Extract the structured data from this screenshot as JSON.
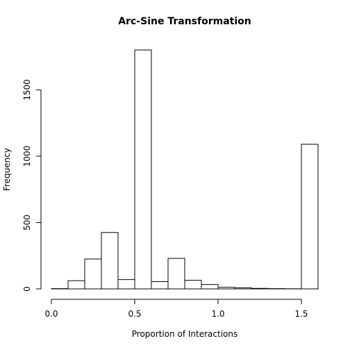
{
  "chart_data": {
    "type": "bar",
    "title": "Arc-Sine Transformation",
    "xlabel": "Proportion of Interactions",
    "ylabel": "Frequency",
    "bin_edges": [
      0.0,
      0.1,
      0.2,
      0.3,
      0.4,
      0.5,
      0.6,
      0.7,
      0.8,
      0.9,
      1.0,
      1.1,
      1.2,
      1.3,
      1.4,
      1.5,
      1.6
    ],
    "values": [
      2,
      62,
      225,
      425,
      70,
      1800,
      55,
      230,
      65,
      33,
      12,
      8,
      4,
      2,
      1,
      1090
    ],
    "xlim": [
      0.0,
      1.6
    ],
    "ylim": [
      0,
      1800
    ],
    "x_ticks": [
      0.0,
      0.5,
      1.0,
      1.5
    ],
    "x_tick_labels": [
      "0.0",
      "0.5",
      "1.0",
      "1.5"
    ],
    "y_ticks": [
      0,
      500,
      1000,
      1500
    ],
    "y_tick_labels": [
      "0",
      "500",
      "1000",
      "1500"
    ],
    "grid": false,
    "legend": "none"
  }
}
